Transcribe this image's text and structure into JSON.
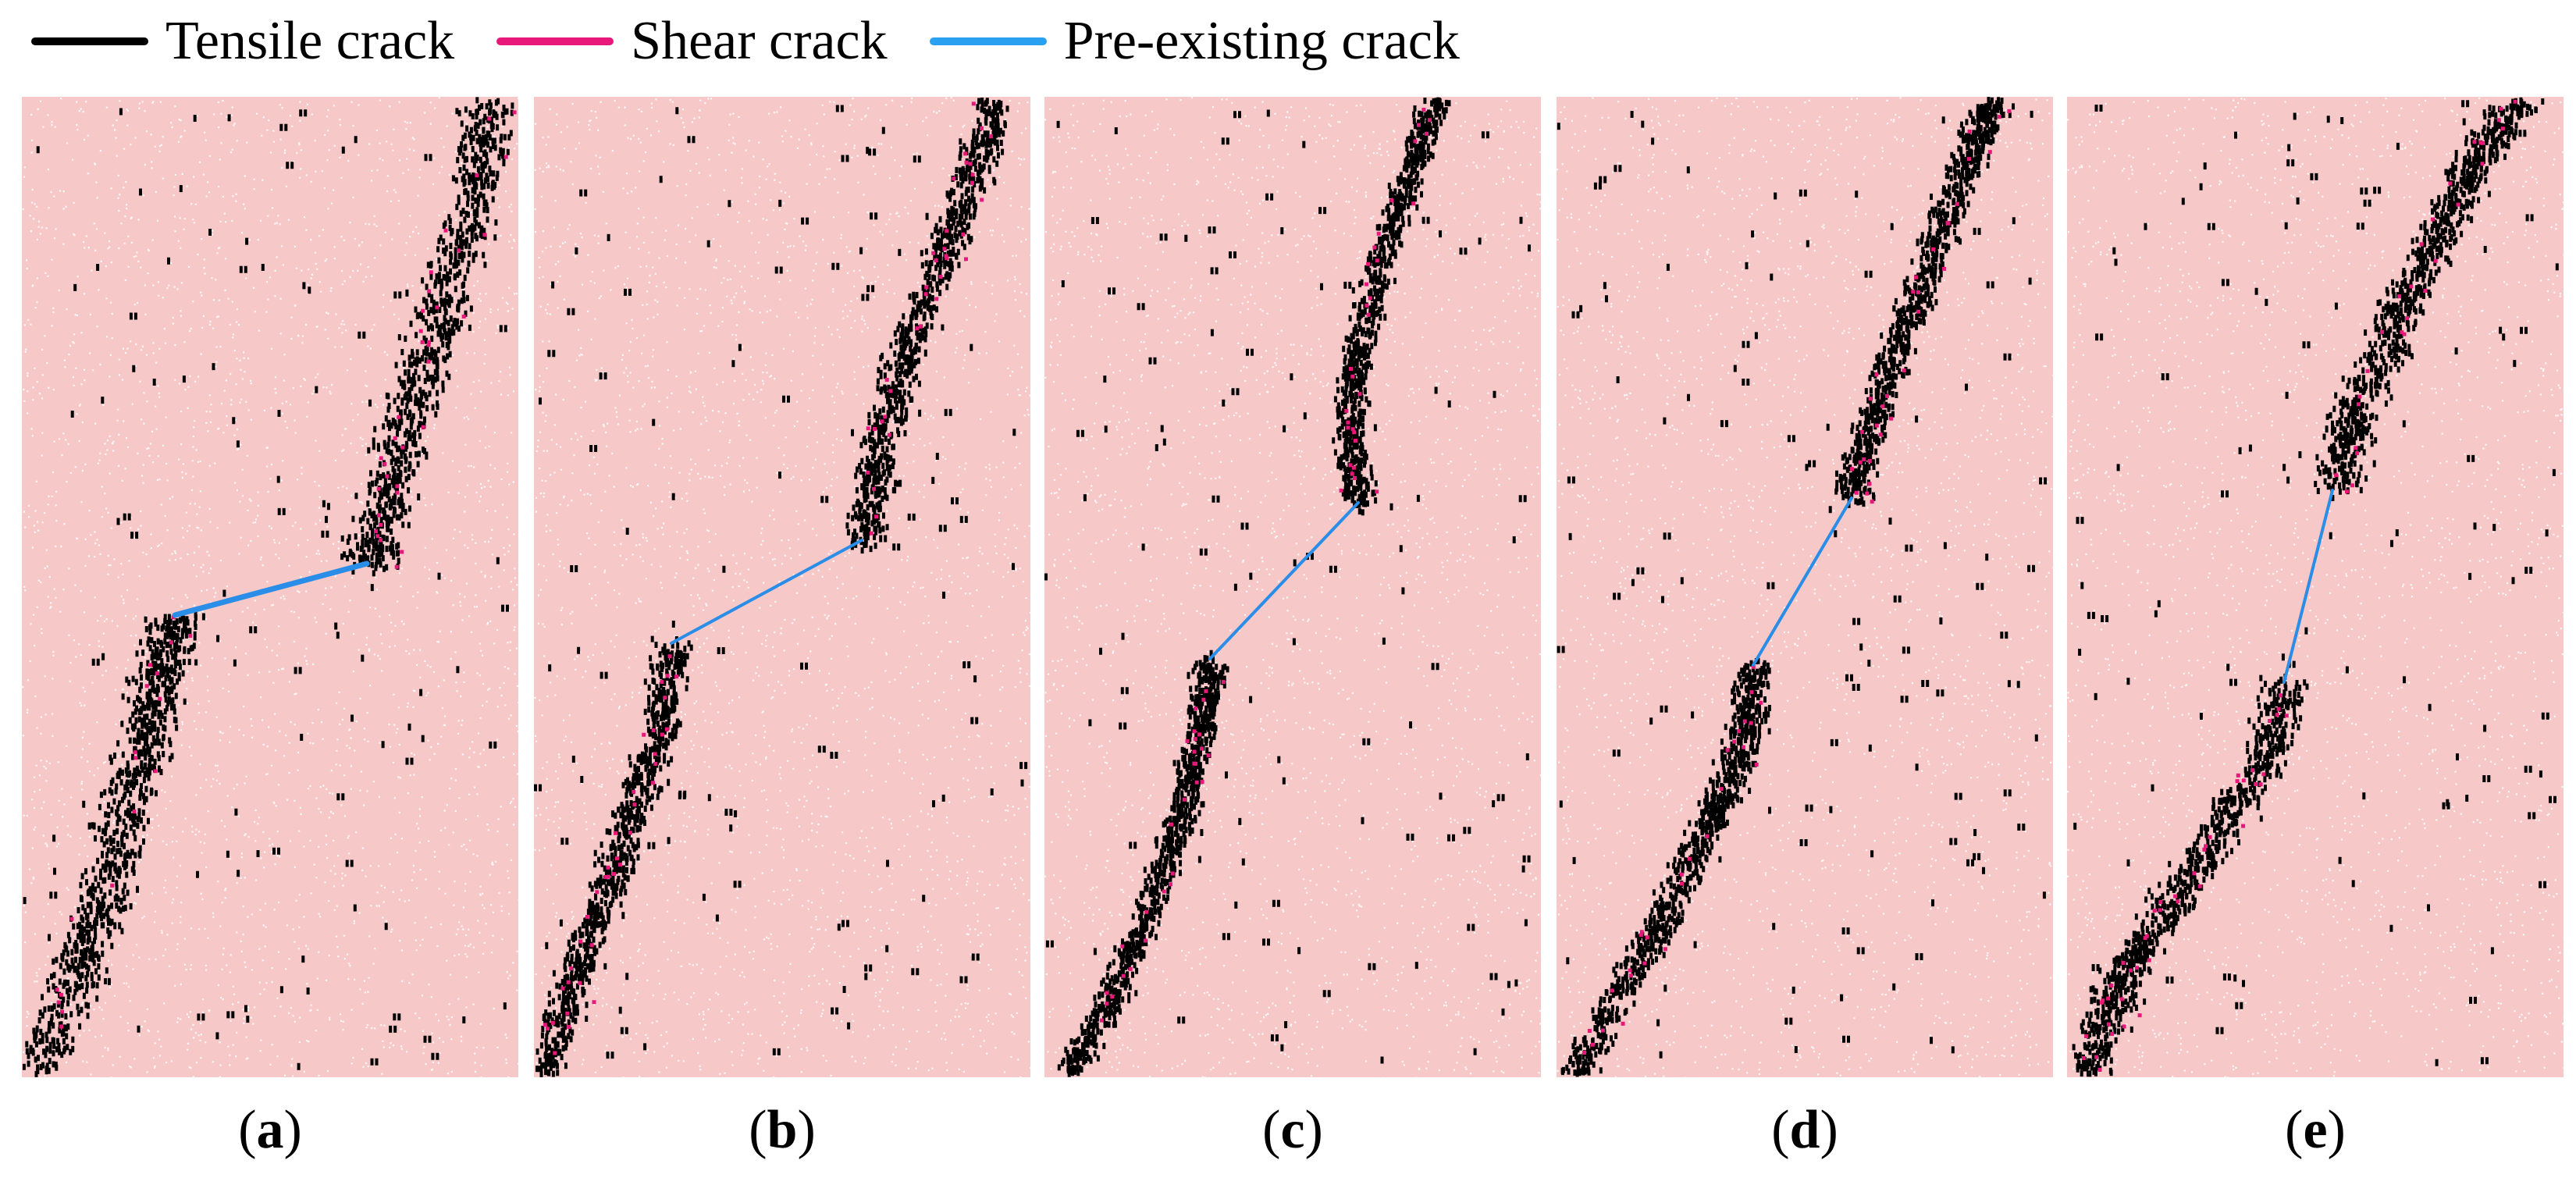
{
  "legend": [
    {
      "label": "Tensile crack",
      "color": "#000000"
    },
    {
      "label": "Shear crack",
      "color": "#e8177a"
    },
    {
      "label": "Pre-existing crack",
      "color": "#2aa0f0"
    }
  ],
  "colors": {
    "specimen": "#f7c8c8",
    "grain": "#ffffff",
    "tensile": "#000000",
    "shear": "#e8177a",
    "preexisting": "#2a8ee8"
  },
  "panels": [
    {
      "caption_open": "(",
      "caption_letter": "a",
      "caption_close": ")"
    },
    {
      "caption_open": "(",
      "caption_letter": "b",
      "caption_close": ")"
    },
    {
      "caption_open": "(",
      "caption_letter": "c",
      "caption_close": ")"
    },
    {
      "caption_open": "(",
      "caption_letter": "d",
      "caption_close": ")"
    },
    {
      "caption_open": "(",
      "caption_letter": "e",
      "caption_close": ")"
    }
  ]
}
